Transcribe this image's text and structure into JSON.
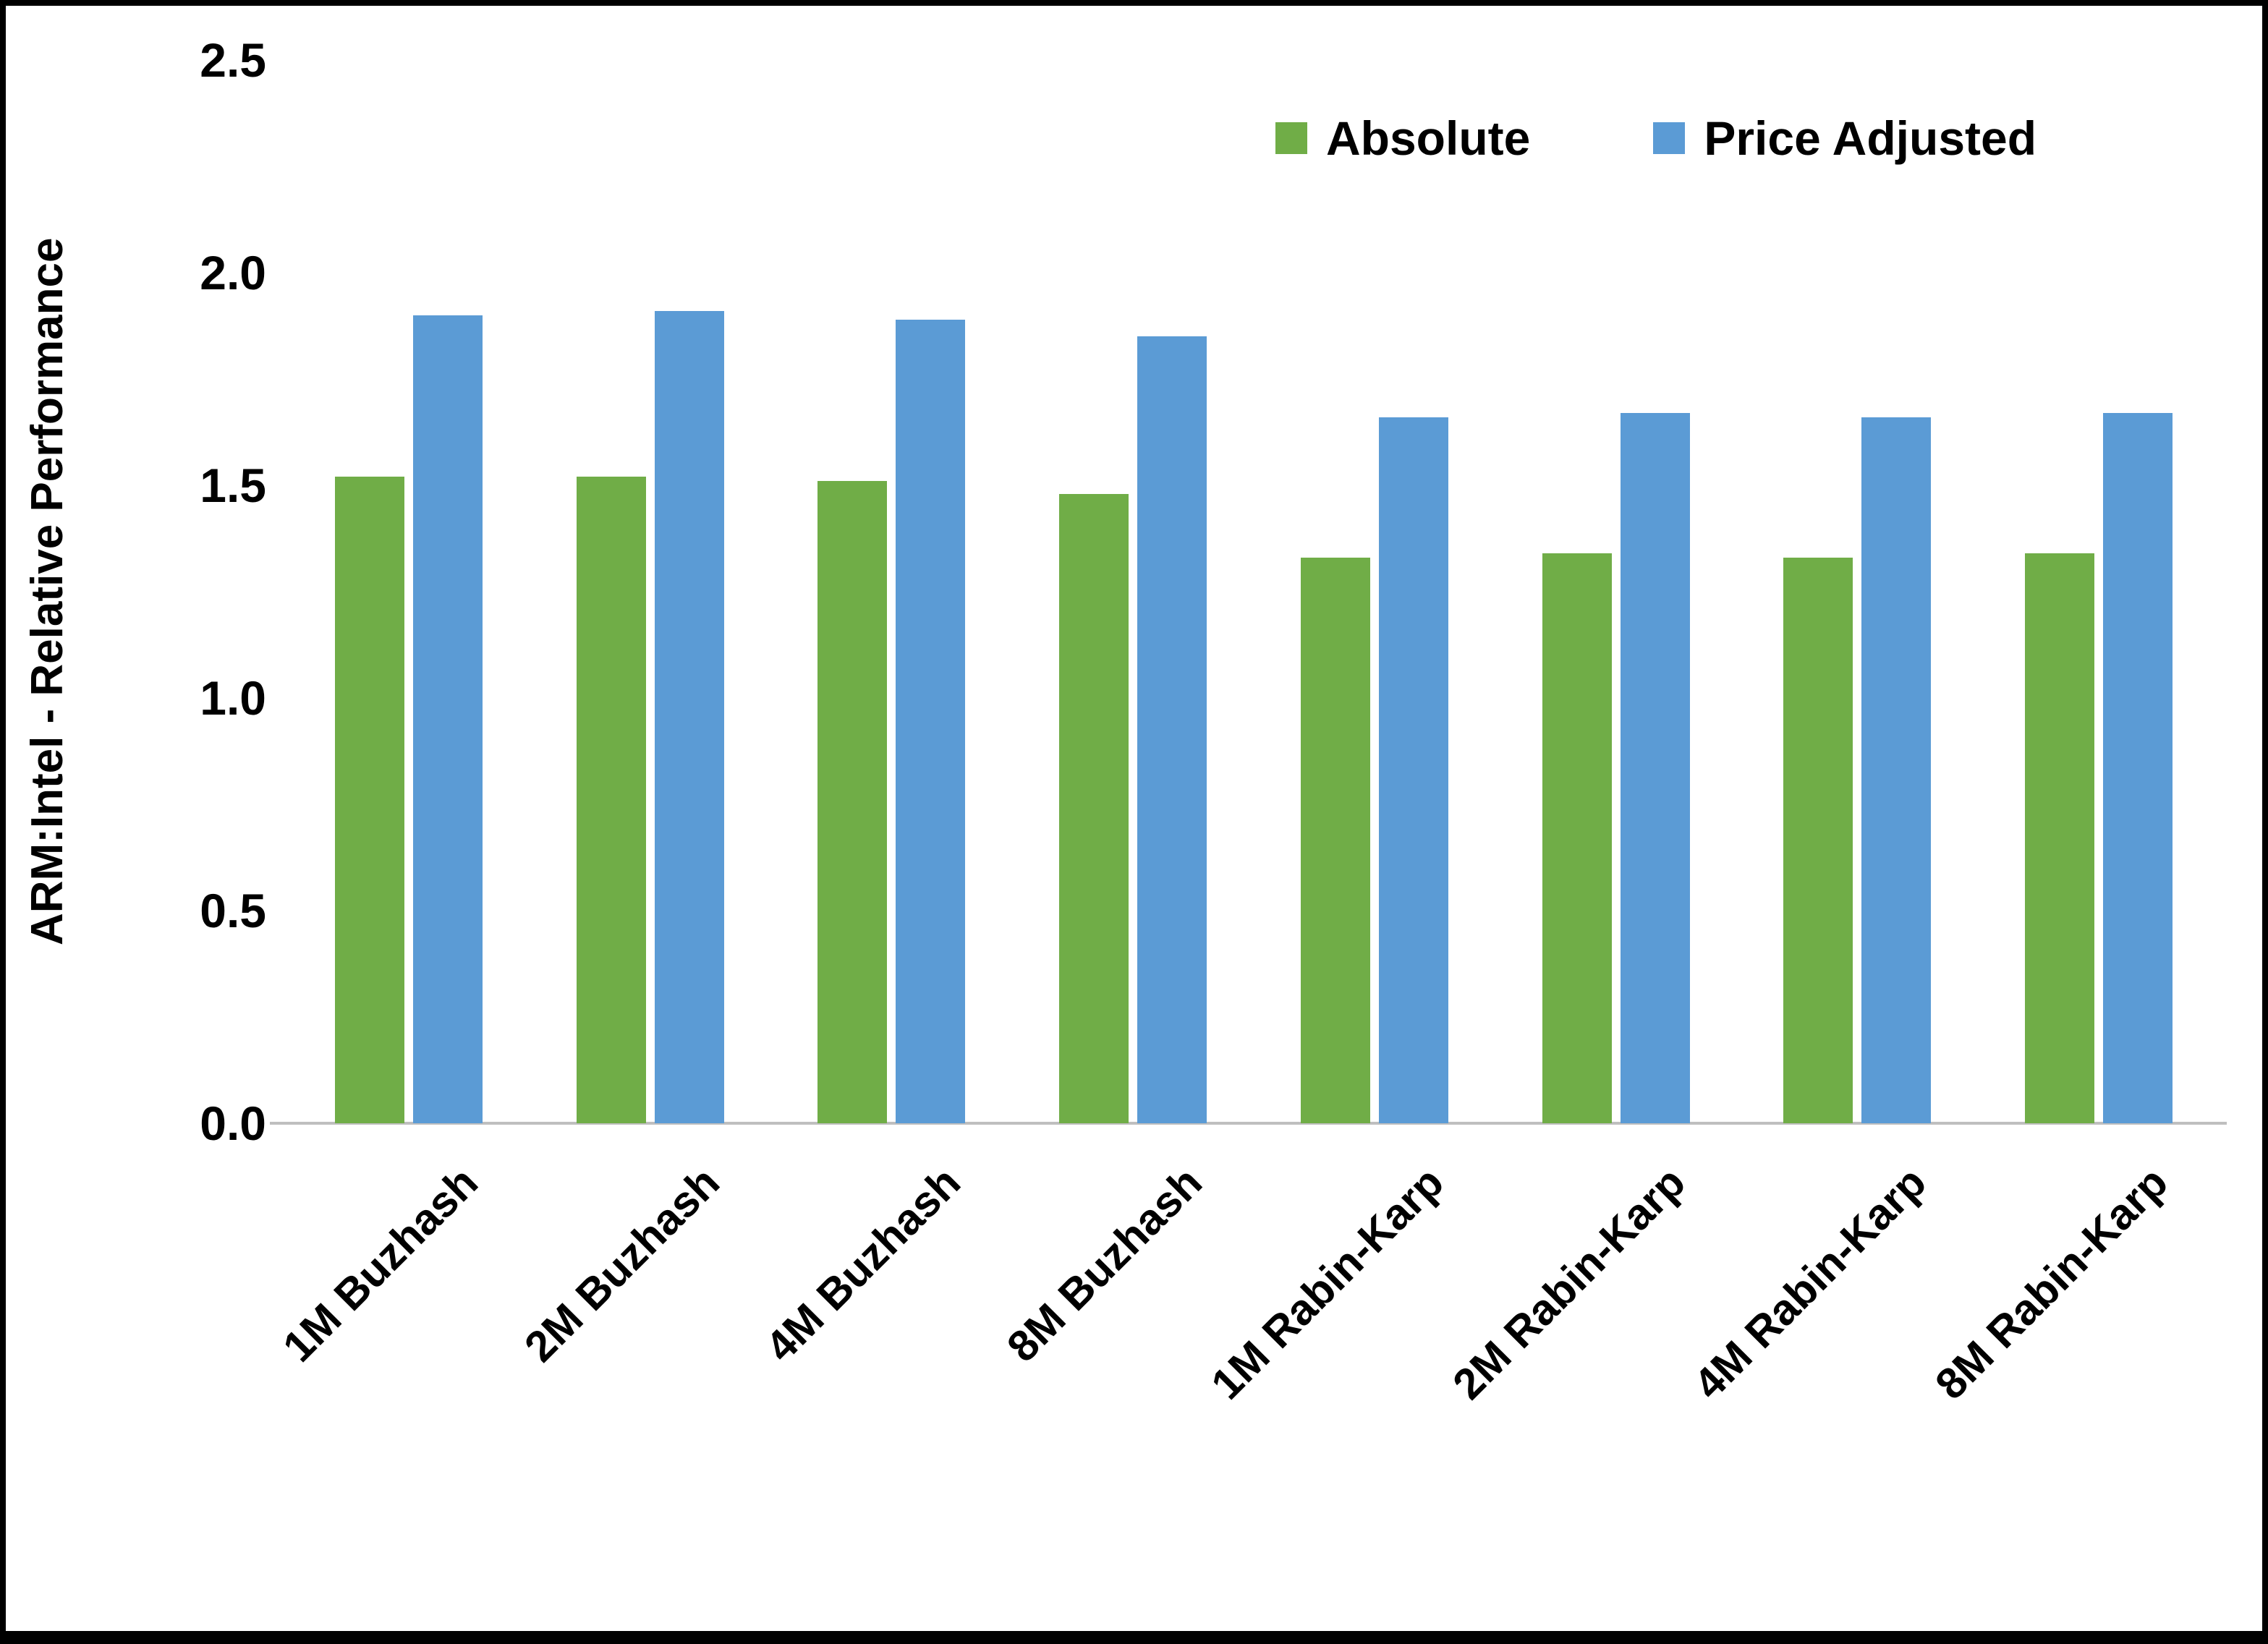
{
  "chart_data": {
    "type": "bar",
    "title": "",
    "xlabel": "",
    "ylabel": "ARM:Intel - Relative Performance",
    "categories": [
      "1M Buzhash",
      "2M Buzhash",
      "4M Buzhash",
      "8M Buzhash",
      "1M Rabin-Karp",
      "2M Rabin-Karp",
      "4M Rabin-Karp",
      "8M Rabin-Karp"
    ],
    "series": [
      {
        "name": "Absolute",
        "color": "#70AD47",
        "values": [
          1.52,
          1.52,
          1.51,
          1.48,
          1.33,
          1.34,
          1.33,
          1.34
        ]
      },
      {
        "name": "Price Adjusted",
        "color": "#5B9BD5",
        "values": [
          1.9,
          1.91,
          1.89,
          1.85,
          1.66,
          1.67,
          1.66,
          1.67
        ]
      }
    ],
    "ylim": [
      0,
      2.5
    ],
    "yticks": [
      0.0,
      0.5,
      1.0,
      1.5,
      2.0,
      2.5
    ],
    "ytick_labels": [
      "0.0",
      "0.5",
      "1.0",
      "1.5",
      "2.0",
      "2.5"
    ],
    "grid": false,
    "legend_position": "top-right"
  },
  "colors": {
    "axis_line": "#BFBFBF",
    "text": "#000000",
    "background": "#FFFFFF",
    "frame_border": "#000000"
  }
}
